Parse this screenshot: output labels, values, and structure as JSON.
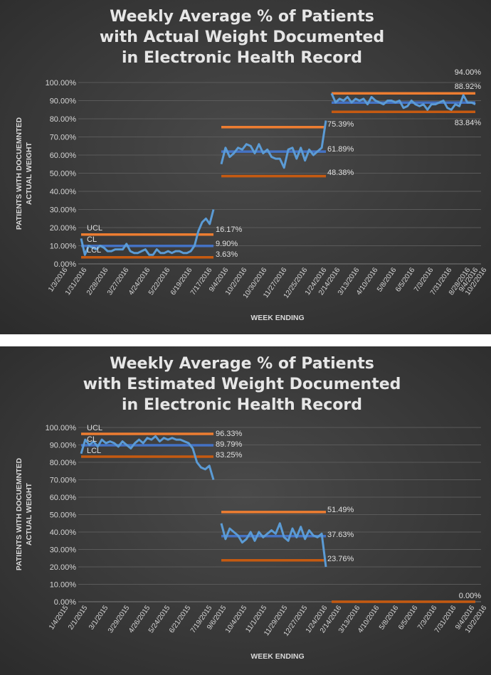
{
  "chart_data": [
    {
      "type": "line",
      "title": [
        "Weekly Average % of Patients",
        "with Actual Weight Documented",
        "in Electronic Health Record"
      ],
      "xlabel": "WEEK ENDING",
      "ylabel": [
        "PATIENTS WITH DOCUEMNTED",
        "ACTUAL WEIGHT"
      ],
      "ylim": [
        0,
        100
      ],
      "yticks": [
        "0.00%",
        "10.00%",
        "20.00%",
        "30.00%",
        "40.00%",
        "50.00%",
        "60.00%",
        "70.00%",
        "80.00%",
        "90.00%",
        "100.00%"
      ],
      "xticks": [
        "1/3/2016",
        "1/31/2016",
        "2/28/2016",
        "3/27/2016",
        "4/24/2016",
        "5/22/2016",
        "6/19/2016",
        "7/17/2016",
        "9/4/2016",
        "10/2/2016",
        "10/30/2016",
        "11/27/2016",
        "12/25/2016",
        "1/24/2016",
        "2/14/2016",
        "3/13/2016",
        "4/10/2016",
        "5/8/2016",
        "6/5/2016",
        "7/3/2016",
        "7/31/2016",
        "8/28/2016",
        "9/4/2016",
        "10/2/2016"
      ],
      "legend": [
        "UCL",
        "CL",
        "LCL"
      ],
      "phases": [
        {
          "ucl": 16.17,
          "cl": 9.9,
          "lcl": 3.63,
          "labels": {
            "ucl": "16.17%",
            "cl": "9.90%",
            "lcl": "3.63%"
          },
          "values": [
            14,
            5,
            10,
            9,
            8,
            10,
            9,
            7,
            7,
            8,
            8,
            8,
            11,
            7,
            6,
            6,
            7,
            8,
            5,
            5,
            8,
            6,
            6,
            7,
            6,
            7,
            7,
            6,
            6,
            7,
            10,
            18,
            23,
            25,
            22,
            30
          ]
        },
        {
          "ucl": 75.39,
          "cl": 61.89,
          "lcl": 48.38,
          "labels": {
            "ucl": "75.39%",
            "cl": "61.89%",
            "lcl": "48.38%"
          },
          "values": [
            55,
            64,
            59,
            61,
            64,
            63,
            66,
            65,
            61,
            66,
            61,
            63,
            59,
            58,
            58,
            53,
            63,
            64,
            58,
            64,
            57,
            63,
            60,
            62,
            64,
            79
          ]
        },
        {
          "ucl": 94.0,
          "cl": 88.92,
          "lcl": 83.84,
          "labels": {
            "ucl": "94.00%",
            "cl": "88.92%",
            "lcl": "83.84%"
          },
          "values": [
            94,
            89,
            91,
            90,
            92,
            89,
            91,
            90,
            91,
            88,
            92,
            90,
            89,
            88,
            90,
            90,
            89,
            90,
            86,
            87,
            90,
            88,
            87,
            88,
            85,
            88,
            88,
            89,
            90,
            86,
            85,
            88,
            87,
            93,
            89,
            89,
            88
          ]
        }
      ]
    },
    {
      "type": "line",
      "title": [
        "Weekly Average % of Patients",
        "with Estimated Weight Documented",
        "in Electronic Health Record"
      ],
      "xlabel": "WEEK ENDING",
      "ylabel": [
        "PATIENTS WITH DOCUEMNTED",
        "ACTUAL WEIGHT"
      ],
      "ylim": [
        0,
        100
      ],
      "yticks": [
        "0.00%",
        "10.00%",
        "20.00%",
        "30.00%",
        "40.00%",
        "50.00%",
        "60.00%",
        "70.00%",
        "80.00%",
        "90.00%",
        "100.00%"
      ],
      "xticks": [
        "1/4/2015",
        "2/1/2015",
        "3/1/2015",
        "3/29/2015",
        "4/26/2015",
        "5/24/2015",
        "6/21/2015",
        "7/19/2015",
        "9/6/2015",
        "10/4/2015",
        "11/1/2015",
        "11/29/2015",
        "12/27/2015",
        "1/24/2016",
        "2/14/2016",
        "3/13/2016",
        "4/10/2016",
        "5/8/2016",
        "6/5/2016",
        "7/3/2016",
        "7/31/2016",
        "9/4/2016",
        "10/2/2016"
      ],
      "legend": [
        "UCL",
        "CL",
        "LCL"
      ],
      "phases": [
        {
          "ucl": 96.33,
          "cl": 89.79,
          "lcl": 83.25,
          "labels": {
            "ucl": "96.33%",
            "cl": "89.79%",
            "lcl": "83.25%"
          },
          "values": [
            85,
            93,
            90,
            92,
            89,
            93,
            91,
            92,
            91,
            89,
            92,
            90,
            88,
            91,
            93,
            91,
            94,
            93,
            95,
            92,
            94,
            93,
            94,
            93,
            93,
            92,
            91,
            88,
            80,
            77,
            76,
            78,
            70
          ]
        },
        {
          "ucl": 51.49,
          "cl": 37.63,
          "lcl": 23.76,
          "labels": {
            "ucl": "51.49%",
            "cl": "37.63%",
            "lcl": "23.76%"
          },
          "values": [
            45,
            36,
            42,
            40,
            38,
            34,
            36,
            40,
            35,
            40,
            37,
            39,
            41,
            39,
            45,
            37,
            35,
            42,
            37,
            43,
            36,
            41,
            38,
            37,
            39,
            20
          ]
        },
        {
          "ucl": 0,
          "cl": 0,
          "lcl": 0,
          "labels": {
            "lcl": "0.00%"
          },
          "values": []
        }
      ]
    }
  ],
  "colors": {
    "background": "#404040",
    "line": "#5b9bd5",
    "ucl": "#ed7d31",
    "cl": "#4472c4",
    "lcl": "#c55a11"
  }
}
